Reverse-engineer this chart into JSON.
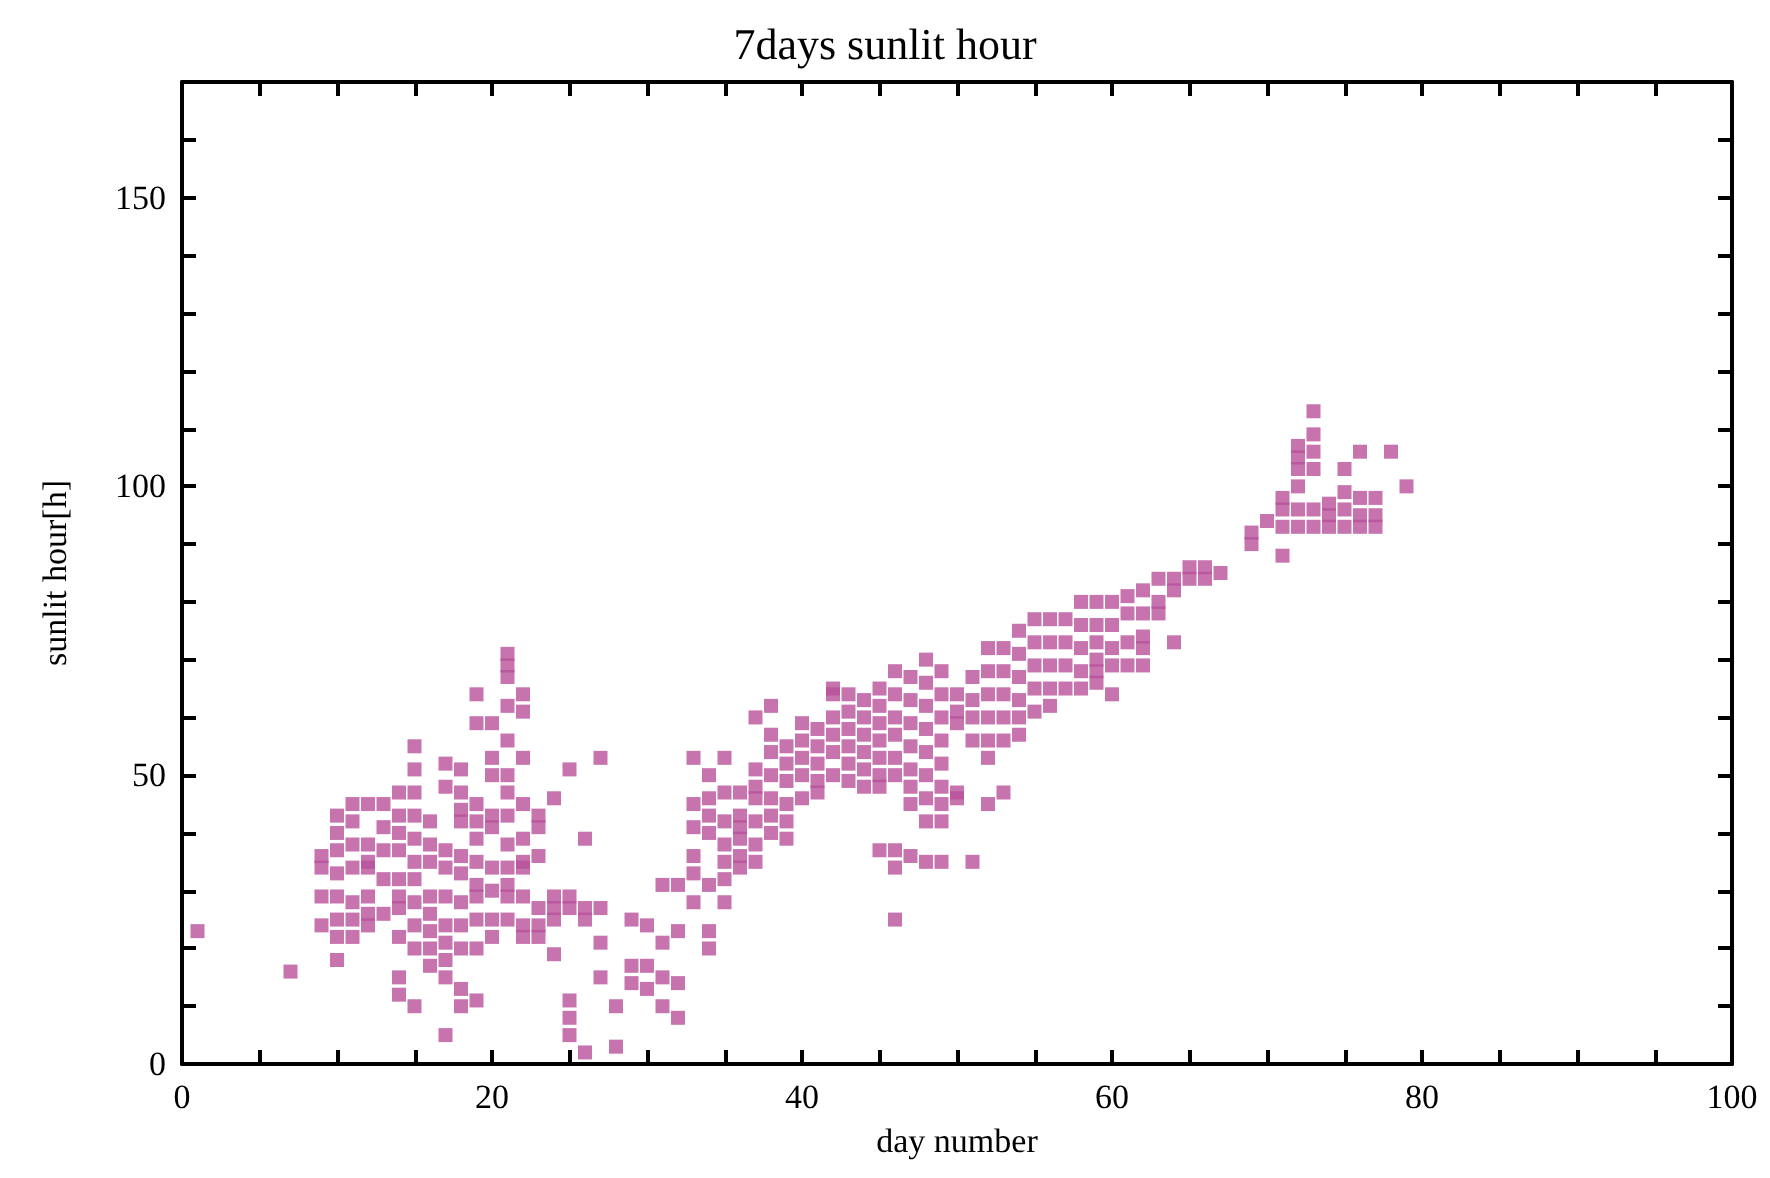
{
  "chart_data": {
    "type": "scatter",
    "title": "7days sunlit hour",
    "xlabel": "day number",
    "ylabel": "sunlit hour[h]",
    "marker": "square",
    "xlim": [
      0,
      100
    ],
    "ylim": [
      0,
      170
    ],
    "xticks": [
      0,
      {
        "value": 5,
        "label": null
      },
      {
        "value": 10,
        "label": null
      },
      {
        "value": 15,
        "label": null
      },
      20,
      {
        "value": 25,
        "label": null
      },
      {
        "value": 30,
        "label": null
      },
      {
        "value": 35,
        "label": null
      },
      40,
      {
        "value": 45,
        "label": null
      },
      {
        "value": 50,
        "label": null
      },
      {
        "value": 55,
        "label": null
      },
      60,
      {
        "value": 65,
        "label": null
      },
      {
        "value": 70,
        "label": null
      },
      {
        "value": 75,
        "label": null
      },
      80,
      {
        "value": 85,
        "label": null
      },
      {
        "value": 90,
        "label": null
      },
      {
        "value": 95,
        "label": null
      },
      100
    ],
    "yticks": [
      0,
      {
        "value": 10,
        "label": null
      },
      {
        "value": 20,
        "label": null
      },
      {
        "value": 30,
        "label": null
      },
      {
        "value": 40,
        "label": null
      },
      50,
      {
        "value": 60,
        "label": null
      },
      {
        "value": 70,
        "label": null
      },
      {
        "value": 80,
        "label": null
      },
      {
        "value": 90,
        "label": null
      },
      100,
      {
        "value": 110,
        "label": null
      },
      {
        "value": 120,
        "label": null
      },
      {
        "value": 130,
        "label": null
      },
      {
        "value": 140,
        "label": null
      },
      150,
      {
        "value": 160,
        "label": null
      },
      {
        "value": 170,
        "label": null
      }
    ],
    "series": [
      {
        "color": "#b8509a",
        "x": [
          1,
          7,
          9,
          9,
          9,
          9,
          10,
          10,
          10,
          10,
          10,
          10,
          10,
          10,
          11,
          11,
          11,
          11,
          11,
          11,
          11,
          12,
          12,
          12,
          12,
          12,
          12,
          12,
          13,
          13,
          13,
          13,
          13,
          14,
          14,
          14,
          14,
          14,
          14,
          14,
          14,
          14,
          14,
          15,
          15,
          15,
          15,
          15,
          15,
          15,
          15,
          15,
          15,
          15,
          16,
          16,
          16,
          16,
          16,
          16,
          16,
          16,
          17,
          17,
          17,
          17,
          17,
          17,
          17,
          17,
          17,
          17,
          18,
          18,
          18,
          18,
          18,
          18,
          18,
          18,
          18,
          18,
          18,
          19,
          19,
          19,
          19,
          19,
          19,
          19,
          19,
          19,
          19,
          19,
          20,
          20,
          20,
          20,
          20,
          20,
          20,
          20,
          20,
          21,
          21,
          21,
          21,
          21,
          21,
          21,
          21,
          21,
          21,
          21,
          21,
          21,
          22,
          22,
          22,
          22,
          22,
          22,
          22,
          22,
          22,
          22,
          23,
          23,
          23,
          23,
          23,
          23,
          24,
          24,
          24,
          24,
          24,
          25,
          25,
          25,
          25,
          25,
          25,
          26,
          26,
          26,
          26,
          27,
          27,
          27,
          27,
          28,
          28,
          29,
          29,
          29,
          30,
          30,
          30,
          31,
          31,
          31,
          31,
          32,
          32,
          32,
          32,
          33,
          33,
          33,
          33,
          33,
          33,
          34,
          34,
          34,
          34,
          34,
          34,
          34,
          35,
          35,
          35,
          35,
          35,
          35,
          35,
          36,
          36,
          36,
          36,
          36,
          36,
          37,
          37,
          37,
          37,
          37,
          37,
          37,
          38,
          38,
          38,
          38,
          38,
          38,
          38,
          39,
          39,
          39,
          39,
          39,
          39,
          40,
          40,
          40,
          40,
          40,
          41,
          41,
          41,
          41,
          41,
          42,
          42,
          42,
          42,
          42,
          42,
          43,
          43,
          43,
          43,
          43,
          43,
          44,
          44,
          44,
          44,
          44,
          44,
          45,
          45,
          45,
          45,
          45,
          45,
          45,
          45,
          46,
          46,
          46,
          46,
          46,
          46,
          46,
          46,
          46,
          47,
          47,
          47,
          47,
          47,
          47,
          47,
          47,
          48,
          48,
          48,
          48,
          48,
          48,
          48,
          48,
          48,
          49,
          49,
          49,
          49,
          49,
          49,
          49,
          49,
          49,
          50,
          50,
          50,
          50,
          50,
          51,
          51,
          51,
          51,
          51,
          52,
          52,
          52,
          52,
          52,
          52,
          52,
          53,
          53,
          53,
          53,
          53,
          53,
          54,
          54,
          54,
          54,
          54,
          54,
          55,
          55,
          55,
          55,
          55,
          56,
          56,
          56,
          56,
          56,
          57,
          57,
          57,
          57,
          58,
          58,
          58,
          58,
          58,
          59,
          59,
          59,
          59,
          59,
          59,
          60,
          60,
          60,
          60,
          60,
          61,
          61,
          61,
          61,
          62,
          62,
          62,
          62,
          62,
          63,
          63,
          63,
          64,
          64,
          64,
          65,
          65,
          66,
          66,
          67,
          69,
          69,
          70,
          71,
          71,
          71,
          71,
          72,
          72,
          72,
          72,
          72,
          72,
          73,
          73,
          73,
          73,
          73,
          73,
          74,
          74,
          74,
          75,
          75,
          75,
          75,
          76,
          76,
          76,
          76,
          77,
          77,
          77,
          78,
          79
        ],
        "values": [
          23,
          16,
          36,
          34,
          29,
          24,
          43,
          40,
          37,
          33,
          29,
          25,
          22,
          18,
          45,
          42,
          38,
          34,
          28,
          25,
          22,
          45,
          38,
          35,
          34,
          29,
          26,
          24,
          45,
          41,
          37,
          32,
          26,
          47,
          43,
          40,
          37,
          32,
          29,
          27,
          22,
          15,
          12,
          55,
          51,
          47,
          43,
          39,
          35,
          32,
          28,
          24,
          20,
          10,
          42,
          38,
          35,
          29,
          26,
          23,
          20,
          17,
          52,
          48,
          37,
          34,
          29,
          24,
          21,
          18,
          15,
          5,
          51,
          47,
          44,
          42,
          36,
          33,
          28,
          24,
          20,
          13,
          10,
          64,
          59,
          45,
          42,
          39,
          35,
          31,
          29,
          25,
          20,
          11,
          59,
          53,
          50,
          43,
          41,
          34,
          30,
          25,
          22,
          71,
          69,
          67,
          62,
          56,
          50,
          47,
          43,
          38,
          34,
          31,
          29,
          25,
          64,
          61,
          53,
          45,
          39,
          35,
          34,
          29,
          24,
          22,
          43,
          41,
          36,
          27,
          24,
          22,
          46,
          29,
          27,
          25,
          19,
          51,
          29,
          27,
          11,
          8,
          5,
          39,
          27,
          25,
          2,
          53,
          27,
          21,
          15,
          10,
          3,
          25,
          17,
          14,
          24,
          17,
          13,
          31,
          21,
          15,
          10,
          31,
          23,
          14,
          8,
          53,
          45,
          41,
          36,
          33,
          28,
          50,
          46,
          43,
          40,
          31,
          23,
          20,
          53,
          47,
          42,
          38,
          35,
          32,
          28,
          47,
          43,
          41,
          39,
          36,
          34,
          60,
          51,
          48,
          46,
          42,
          38,
          35,
          62,
          57,
          54,
          50,
          46,
          43,
          40,
          55,
          52,
          49,
          45,
          42,
          39,
          59,
          56,
          53,
          50,
          46,
          58,
          55,
          52,
          49,
          47,
          65,
          64,
          60,
          57,
          54,
          50,
          64,
          61,
          58,
          55,
          52,
          49,
          63,
          60,
          57,
          54,
          51,
          48,
          65,
          62,
          59,
          56,
          53,
          50,
          48,
          37,
          68,
          64,
          60,
          57,
          53,
          50,
          37,
          34,
          25,
          67,
          63,
          59,
          55,
          51,
          48,
          45,
          36,
          70,
          66,
          62,
          58,
          54,
          50,
          46,
          42,
          35,
          68,
          64,
          60,
          56,
          52,
          48,
          45,
          42,
          35,
          64,
          61,
          59,
          47,
          46,
          67,
          63,
          60,
          56,
          35,
          72,
          68,
          64,
          60,
          56,
          53,
          45,
          72,
          68,
          64,
          60,
          56,
          47,
          75,
          71,
          67,
          63,
          60,
          57,
          77,
          73,
          69,
          65,
          61,
          77,
          73,
          69,
          65,
          62,
          77,
          73,
          69,
          65,
          80,
          76,
          72,
          68,
          65,
          80,
          76,
          73,
          70,
          68,
          66,
          80,
          76,
          72,
          69,
          64,
          81,
          78,
          73,
          69,
          82,
          78,
          74,
          72,
          69,
          84,
          80,
          78,
          84,
          82,
          73,
          86,
          84,
          86,
          84,
          85,
          92,
          90,
          94,
          98,
          96,
          93,
          88,
          107,
          105,
          103,
          100,
          96,
          93,
          113,
          109,
          106,
          103,
          96,
          93,
          97,
          95,
          93,
          103,
          99,
          96,
          93,
          106,
          98,
          95,
          93,
          98,
          95,
          93,
          106,
          100
        ]
      }
    ]
  }
}
